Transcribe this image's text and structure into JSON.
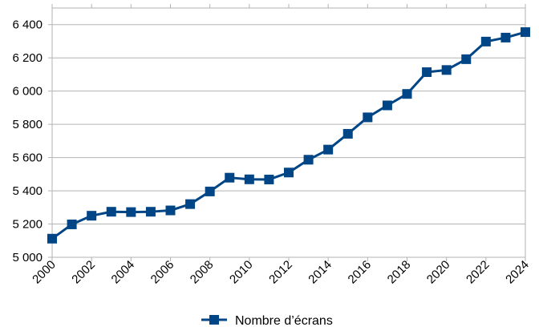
{
  "chart_data": {
    "type": "line",
    "x": [
      2000,
      2001,
      2002,
      2003,
      2004,
      2005,
      2006,
      2007,
      2008,
      2009,
      2010,
      2011,
      2012,
      2013,
      2014,
      2015,
      2016,
      2017,
      2018,
      2019,
      2020,
      2021,
      2022,
      2023,
      2024
    ],
    "series": [
      {
        "name": "Nombre d’écrans",
        "values": [
          5112,
          5198,
          5250,
          5274,
          5272,
          5274,
          5282,
          5320,
          5396,
          5479,
          5469,
          5468,
          5510,
          5587,
          5648,
          5743,
          5842,
          5914,
          5983,
          6114,
          6127,
          6192,
          6298,
          6322,
          6355
        ],
        "color": "#004586",
        "marker": "square"
      }
    ],
    "x_tick_labels": [
      "2000",
      "2002",
      "2004",
      "2006",
      "2008",
      "2010",
      "2012",
      "2014",
      "2016",
      "2018",
      "2020",
      "2022",
      "2024"
    ],
    "y_tick_labels": [
      "5 000",
      "5 200",
      "5 400",
      "5 600",
      "5 800",
      "6 000",
      "6 200",
      "6 400"
    ],
    "y_ticks": [
      5000,
      5200,
      5400,
      5600,
      5800,
      6000,
      6200,
      6400
    ],
    "xlim": [
      2000,
      2024
    ],
    "ylim": [
      5000,
      6500
    ],
    "grid": "horizontal",
    "legend_position": "bottom"
  }
}
